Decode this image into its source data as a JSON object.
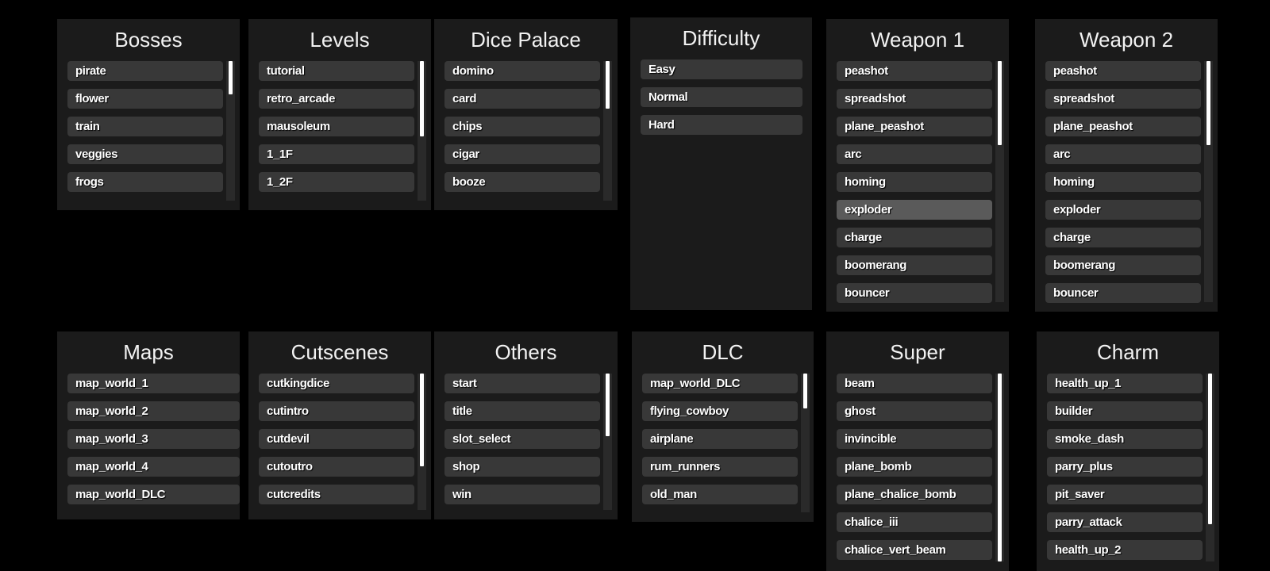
{
  "panels": [
    {
      "id": "bosses",
      "title": "Bosses",
      "items": [
        "pirate",
        "flower",
        "train",
        "veggies",
        "frogs"
      ],
      "scroll_thumb_fraction": 0.24
    },
    {
      "id": "levels",
      "title": "Levels",
      "items": [
        "tutorial",
        "retro_arcade",
        "mausoleum",
        "1_1F",
        "1_2F"
      ],
      "scroll_thumb_fraction": 0.54
    },
    {
      "id": "dice-palace",
      "title": "Dice Palace",
      "items": [
        "domino",
        "card",
        "chips",
        "cigar",
        "booze"
      ],
      "scroll_thumb_fraction": 0.34
    },
    {
      "id": "difficulty",
      "title": "Difficulty",
      "items": [
        "Easy",
        "Normal",
        "Hard"
      ]
    },
    {
      "id": "weapon-1",
      "title": "Weapon 1",
      "items": [
        "peashot",
        "spreadshot",
        "plane_peashot",
        "arc",
        "homing",
        "exploder",
        "charge",
        "boomerang",
        "bouncer"
      ],
      "scroll_thumb_fraction": 0.35,
      "hovered_item": "exploder"
    },
    {
      "id": "weapon-2",
      "title": "Weapon 2",
      "items": [
        "peashot",
        "spreadshot",
        "plane_peashot",
        "arc",
        "homing",
        "exploder",
        "charge",
        "boomerang",
        "bouncer"
      ],
      "scroll_thumb_fraction": 0.35
    },
    {
      "id": "maps",
      "title": "Maps",
      "items": [
        "map_world_1",
        "map_world_2",
        "map_world_3",
        "map_world_4",
        "map_world_DLC"
      ]
    },
    {
      "id": "cutscenes",
      "title": "Cutscenes",
      "items": [
        "cutkingdice",
        "cutintro",
        "cutdevil",
        "cutoutro",
        "cutcredits"
      ],
      "scroll_thumb_fraction": 0.68
    },
    {
      "id": "others",
      "title": "Others",
      "items": [
        "start",
        "title",
        "slot_select",
        "shop",
        "win"
      ],
      "scroll_thumb_fraction": 0.46
    },
    {
      "id": "dlc",
      "title": "DLC",
      "items": [
        "map_world_DLC",
        "flying_cowboy",
        "airplane",
        "rum_runners",
        "old_man"
      ],
      "scroll_thumb_fraction": 0.25
    },
    {
      "id": "super",
      "title": "Super",
      "items": [
        "beam",
        "ghost",
        "invincible",
        "plane_bomb",
        "plane_chalice_bomb",
        "chalice_iii",
        "chalice_vert_beam"
      ],
      "scroll_thumb_fraction": 1.0
    },
    {
      "id": "charm",
      "title": "Charm",
      "items": [
        "health_up_1",
        "builder",
        "smoke_dash",
        "parry_plus",
        "pit_saver",
        "parry_attack",
        "health_up_2"
      ],
      "scroll_thumb_fraction": 0.8
    }
  ]
}
